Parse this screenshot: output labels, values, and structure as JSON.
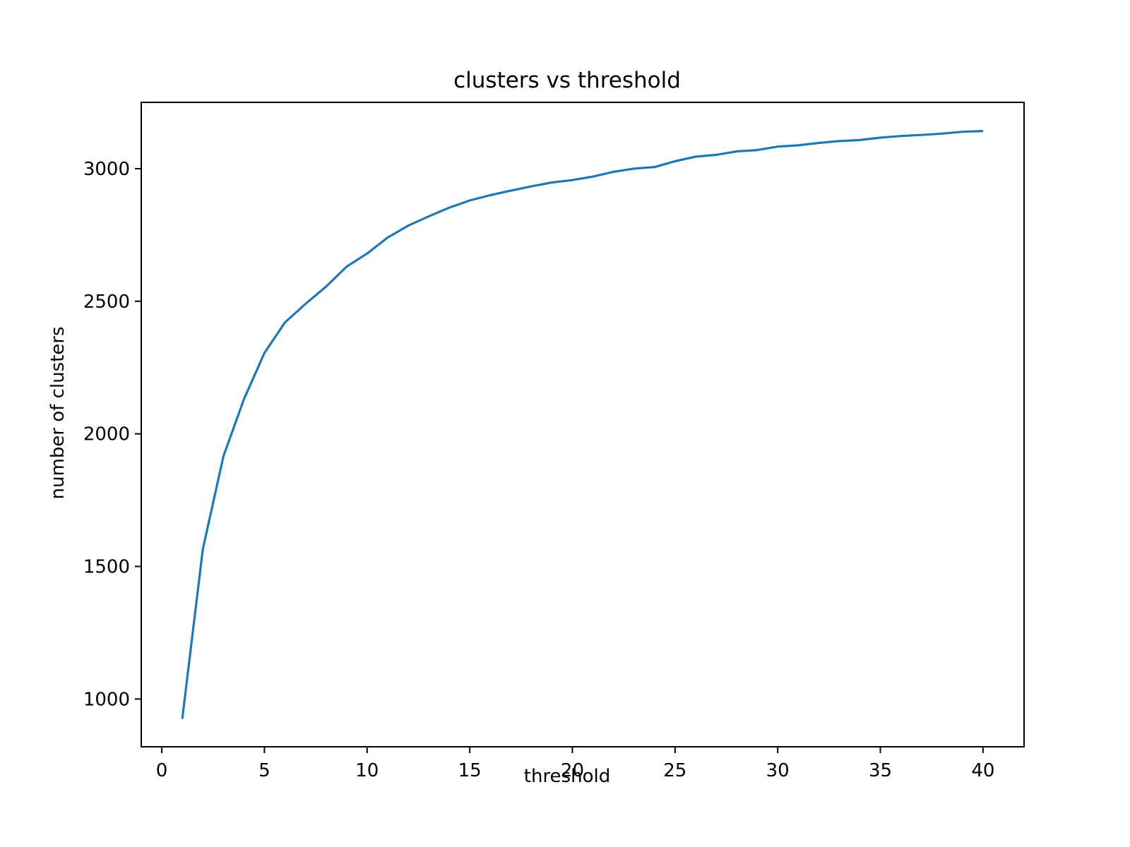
{
  "chart_data": {
    "type": "line",
    "title": "clusters vs threshold",
    "xlabel": "threshold",
    "ylabel": "number of clusters",
    "xlim": [
      -1,
      42
    ],
    "ylim": [
      820,
      3250
    ],
    "xticks": [
      0,
      5,
      10,
      15,
      20,
      25,
      30,
      35,
      40
    ],
    "yticks": [
      1000,
      1500,
      2000,
      2500,
      3000
    ],
    "grid": false,
    "line_color": "#1f77b4",
    "series": [
      {
        "x": [
          1,
          2,
          3,
          4,
          5,
          6,
          7,
          8,
          9,
          10,
          11,
          12,
          13,
          14,
          15,
          16,
          17,
          18,
          19,
          20,
          21,
          22,
          23,
          24,
          25,
          26,
          27,
          28,
          29,
          30,
          31,
          32,
          33,
          34,
          35,
          36,
          37,
          38,
          39,
          40
        ],
        "values": [
          925,
          1565,
          1915,
          2130,
          2305,
          2420,
          2490,
          2555,
          2630,
          2680,
          2740,
          2785,
          2820,
          2853,
          2880,
          2900,
          2917,
          2933,
          2948,
          2957,
          2970,
          2988,
          3000,
          3006,
          3028,
          3045,
          3052,
          3065,
          3070,
          3083,
          3088,
          3097,
          3104,
          3108,
          3117,
          3123,
          3127,
          3132,
          3139,
          3142
        ]
      }
    ]
  }
}
